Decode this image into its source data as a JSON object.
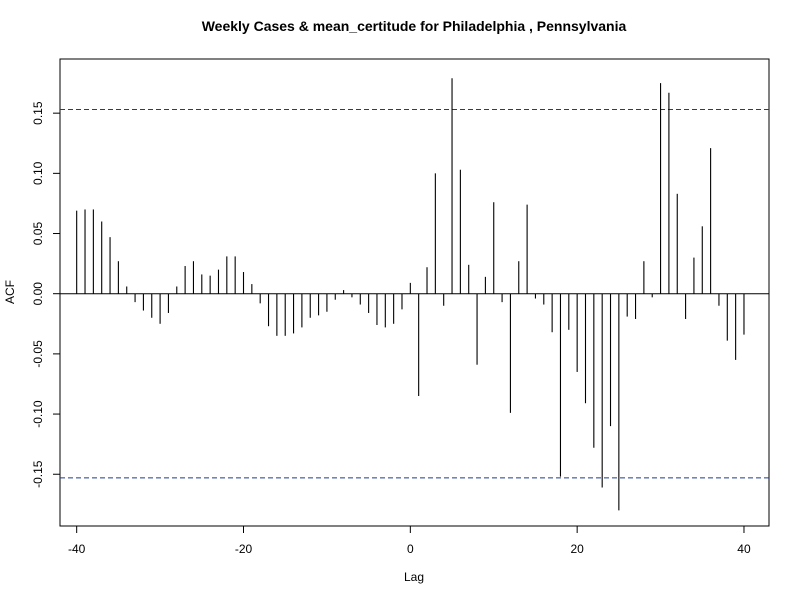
{
  "chart_data": {
    "type": "bar",
    "title": "Weekly Cases & mean_certitude for Philadelphia , Pennsylvania",
    "xlabel": "Lag",
    "ylabel": "ACF",
    "xlim": [
      -42,
      43
    ],
    "ylim": [
      -0.193,
      0.195
    ],
    "xticks": [
      -40,
      -20,
      0,
      20,
      40
    ],
    "xtick_labels": [
      "-40",
      "-20",
      "0",
      "20",
      "40"
    ],
    "yticks": [
      -0.15,
      -0.1,
      -0.05,
      0.0,
      0.05,
      0.1,
      0.15
    ],
    "ytick_labels": [
      "-0.15",
      "-0.10",
      "-0.05",
      "0.00",
      "0.05",
      "0.10",
      "0.15"
    ],
    "confidence_bounds": [
      0.153,
      -0.153
    ],
    "zero_line": 0,
    "x": [
      -40,
      -39,
      -38,
      -37,
      -36,
      -35,
      -34,
      -33,
      -32,
      -31,
      -30,
      -29,
      -28,
      -27,
      -26,
      -25,
      -24,
      -23,
      -22,
      -21,
      -20,
      -19,
      -18,
      -17,
      -16,
      -15,
      -14,
      -13,
      -12,
      -11,
      -10,
      -9,
      -8,
      -7,
      -6,
      -5,
      -4,
      -3,
      -2,
      -1,
      0,
      1,
      2,
      3,
      4,
      5,
      6,
      7,
      8,
      9,
      10,
      11,
      12,
      13,
      14,
      15,
      16,
      17,
      18,
      19,
      20,
      21,
      22,
      23,
      24,
      25,
      26,
      27,
      28,
      29,
      30,
      31,
      32,
      33,
      34,
      35,
      36,
      37,
      38,
      39,
      40
    ],
    "values": [
      0.069,
      0.07,
      0.07,
      0.06,
      0.047,
      0.027,
      0.006,
      -0.007,
      -0.014,
      -0.02,
      -0.025,
      -0.016,
      0.006,
      0.023,
      0.027,
      0.016,
      0.015,
      0.02,
      0.031,
      0.031,
      0.018,
      0.008,
      -0.008,
      -0.027,
      -0.035,
      -0.035,
      -0.033,
      -0.028,
      -0.02,
      -0.018,
      -0.015,
      -0.005,
      0.003,
      -0.003,
      -0.009,
      -0.016,
      -0.026,
      -0.028,
      -0.025,
      -0.013,
      0.009,
      -0.085,
      0.022,
      0.1,
      -0.01,
      0.179,
      0.103,
      0.024,
      -0.059,
      0.014,
      0.076,
      -0.007,
      -0.099,
      0.027,
      0.074,
      -0.004,
      -0.009,
      -0.032,
      -0.152,
      -0.03,
      -0.065,
      -0.091,
      -0.128,
      -0.161,
      -0.11,
      -0.18,
      -0.019,
      -0.021,
      0.027,
      -0.003,
      0.175,
      0.167,
      0.083,
      -0.021,
      0.03,
      0.056,
      0.121,
      -0.01,
      -0.039,
      -0.055,
      -0.034
    ],
    "grid": false,
    "colors": {
      "bars": "#000000",
      "bounds": "#1f3a93",
      "frame": "#000000"
    }
  }
}
